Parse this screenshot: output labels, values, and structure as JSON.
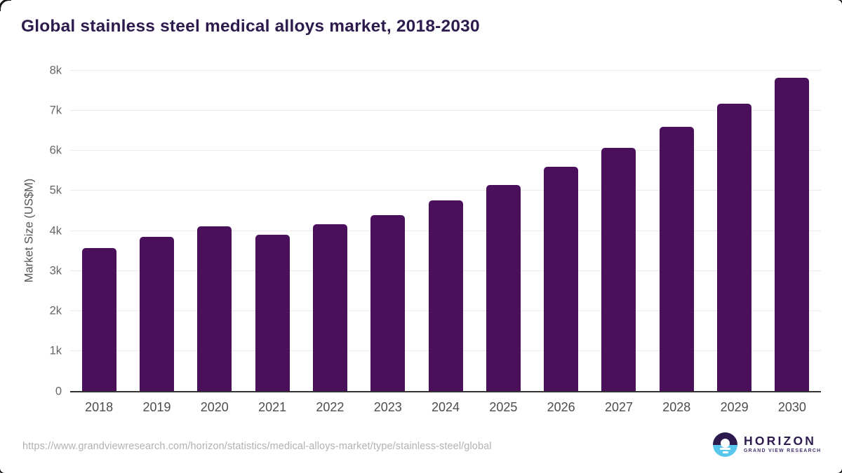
{
  "page": {
    "title": "Global stainless steel medical alloys market, 2018-2030"
  },
  "source": {
    "url": "https://www.grandviewresearch.com/horizon/statistics/medical-alloys-market/type/stainless-steel/global"
  },
  "logo": {
    "wordmark": "HORIZON",
    "tagline": "GRAND VIEW RESEARCH"
  },
  "colors": {
    "bar": "#4a105c",
    "title": "#2e1b4e",
    "gridline": "#e9e9e9",
    "axis_line": "#333333",
    "y_tick_text": "#666666",
    "x_tick_text": "#4d4d4d",
    "url_text": "#b2b2b2",
    "logo_purple": "#2e1b4e",
    "logo_blue": "#59c6ee"
  },
  "chart_data": {
    "type": "bar",
    "title": "Global stainless steel medical alloys market, 2018-2030",
    "xlabel": "",
    "ylabel": "Market Size (US$M)",
    "categories": [
      "2018",
      "2019",
      "2020",
      "2021",
      "2022",
      "2023",
      "2024",
      "2025",
      "2026",
      "2027",
      "2028",
      "2029",
      "2030"
    ],
    "values": [
      3570,
      3840,
      4110,
      3900,
      4160,
      4390,
      4750,
      5130,
      5590,
      6060,
      6580,
      7170,
      7800
    ],
    "ylim": [
      0,
      8000
    ],
    "ytick_labels": [
      "0",
      "1k",
      "2k",
      "3k",
      "4k",
      "5k",
      "6k",
      "7k",
      "8k"
    ],
    "grid": "horizontal",
    "legend_position": "none"
  }
}
